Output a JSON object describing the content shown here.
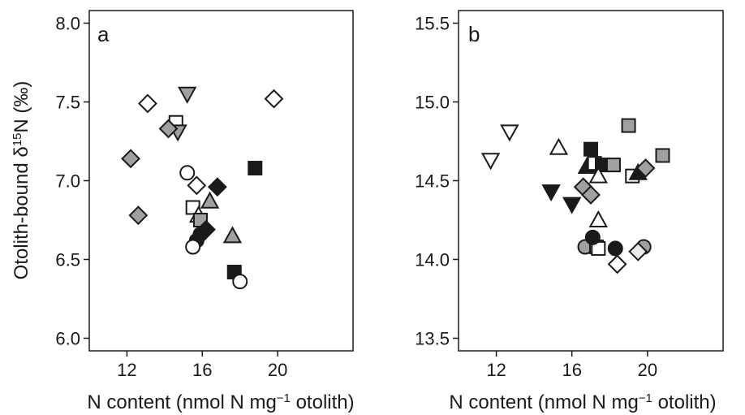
{
  "colors": {
    "black": "#1a1a1a",
    "gray": "#a0a0a0",
    "lightgray": "#e9e9e9",
    "white": "#ffffff"
  },
  "chart_data": [
    {
      "type": "scatter",
      "panel_label": "a",
      "ylabel_main": "Otolith-bound δ",
      "ylabel_sup": "15",
      "ylabel_tail": "N  (‰)",
      "xlabel_main": "N content (nmol N mg",
      "xlabel_sup": "−1",
      "xlabel_tail": " otolith)",
      "xlim": [
        10,
        24
      ],
      "ylim": [
        5.92,
        8.08
      ],
      "xticks": [
        12,
        16,
        20
      ],
      "yticks": [
        6.0,
        6.5,
        7.0,
        7.5,
        8.0
      ],
      "ytick_labels": [
        "6.0",
        "6.5",
        "7.0",
        "7.5",
        "8.0"
      ],
      "grid": false,
      "points": [
        {
          "x": 13.1,
          "y": 7.49,
          "shape": "diamond",
          "fill": "white"
        },
        {
          "x": 19.8,
          "y": 7.52,
          "shape": "diamond",
          "fill": "white"
        },
        {
          "x": 15.2,
          "y": 7.55,
          "shape": "triangle-down",
          "fill": "gray"
        },
        {
          "x": 14.6,
          "y": 7.37,
          "shape": "square",
          "fill": "white"
        },
        {
          "x": 14.7,
          "y": 7.31,
          "shape": "triangle-down",
          "fill": "gray"
        },
        {
          "x": 14.2,
          "y": 7.33,
          "shape": "diamond",
          "fill": "gray"
        },
        {
          "x": 12.2,
          "y": 7.14,
          "shape": "diamond",
          "fill": "gray"
        },
        {
          "x": 12.6,
          "y": 6.78,
          "shape": "diamond",
          "fill": "gray"
        },
        {
          "x": 15.2,
          "y": 7.05,
          "shape": "circle",
          "fill": "white"
        },
        {
          "x": 15.7,
          "y": 6.97,
          "shape": "diamond",
          "fill": "white"
        },
        {
          "x": 16.8,
          "y": 6.96,
          "shape": "diamond",
          "fill": "black"
        },
        {
          "x": 18.8,
          "y": 7.08,
          "shape": "square",
          "fill": "black"
        },
        {
          "x": 15.5,
          "y": 6.83,
          "shape": "square",
          "fill": "white"
        },
        {
          "x": 16.4,
          "y": 6.87,
          "shape": "triangle-up",
          "fill": "gray"
        },
        {
          "x": 15.8,
          "y": 6.78,
          "shape": "triangle-up",
          "fill": "white"
        },
        {
          "x": 15.9,
          "y": 6.75,
          "shape": "square",
          "fill": "gray"
        },
        {
          "x": 16.2,
          "y": 6.69,
          "shape": "diamond",
          "fill": "black"
        },
        {
          "x": 17.6,
          "y": 6.65,
          "shape": "triangle-up",
          "fill": "gray"
        },
        {
          "x": 15.9,
          "y": 6.66,
          "shape": "circle",
          "fill": "black"
        },
        {
          "x": 15.7,
          "y": 6.62,
          "shape": "circle",
          "fill": "black"
        },
        {
          "x": 15.5,
          "y": 6.58,
          "shape": "circle",
          "fill": "white"
        },
        {
          "x": 17.7,
          "y": 6.42,
          "shape": "square",
          "fill": "black"
        },
        {
          "x": 18.0,
          "y": 6.36,
          "shape": "circle",
          "fill": "white"
        }
      ]
    },
    {
      "type": "scatter",
      "panel_label": "b",
      "xlabel_main": "N content (nmol N mg",
      "xlabel_sup": "−1",
      "xlabel_tail": " otolith)",
      "xlim": [
        10,
        24
      ],
      "ylim": [
        13.42,
        15.58
      ],
      "xticks": [
        12,
        16,
        20
      ],
      "yticks": [
        13.5,
        14.0,
        14.5,
        15.0,
        15.5
      ],
      "ytick_labels": [
        "13.5",
        "14.0",
        "14.5",
        "15.0",
        "15.5"
      ],
      "grid": false,
      "points": [
        {
          "x": 11.7,
          "y": 14.63,
          "shape": "triangle-down",
          "fill": "white"
        },
        {
          "x": 12.7,
          "y": 14.81,
          "shape": "triangle-down",
          "fill": "white"
        },
        {
          "x": 15.3,
          "y": 14.71,
          "shape": "triangle-up",
          "fill": "white"
        },
        {
          "x": 17.0,
          "y": 14.7,
          "shape": "square",
          "fill": "black"
        },
        {
          "x": 19.0,
          "y": 14.85,
          "shape": "square",
          "fill": "gray"
        },
        {
          "x": 20.8,
          "y": 14.66,
          "shape": "square",
          "fill": "gray"
        },
        {
          "x": 16.8,
          "y": 14.59,
          "shape": "triangle-up",
          "fill": "black"
        },
        {
          "x": 17.2,
          "y": 14.61,
          "shape": "square",
          "fill": "white"
        },
        {
          "x": 17.6,
          "y": 14.6,
          "shape": "square",
          "fill": "black"
        },
        {
          "x": 18.2,
          "y": 14.6,
          "shape": "square",
          "fill": "gray"
        },
        {
          "x": 17.4,
          "y": 14.53,
          "shape": "triangle-up",
          "fill": "white"
        },
        {
          "x": 19.2,
          "y": 14.53,
          "shape": "square",
          "fill": "white"
        },
        {
          "x": 19.5,
          "y": 14.55,
          "shape": "triangle-up",
          "fill": "black"
        },
        {
          "x": 19.9,
          "y": 14.58,
          "shape": "diamond",
          "fill": "gray"
        },
        {
          "x": 14.9,
          "y": 14.43,
          "shape": "triangle-down",
          "fill": "black"
        },
        {
          "x": 16.6,
          "y": 14.46,
          "shape": "diamond",
          "fill": "gray"
        },
        {
          "x": 17.0,
          "y": 14.41,
          "shape": "diamond",
          "fill": "gray"
        },
        {
          "x": 16.0,
          "y": 14.35,
          "shape": "triangle-down",
          "fill": "black"
        },
        {
          "x": 17.4,
          "y": 14.25,
          "shape": "triangle-up",
          "fill": "white"
        },
        {
          "x": 16.7,
          "y": 14.08,
          "shape": "circle",
          "fill": "gray"
        },
        {
          "x": 17.3,
          "y": 14.08,
          "shape": "square",
          "fill": "gray"
        },
        {
          "x": 17.4,
          "y": 14.07,
          "shape": "square",
          "fill": "white"
        },
        {
          "x": 17.1,
          "y": 14.14,
          "shape": "circle",
          "fill": "black"
        },
        {
          "x": 18.3,
          "y": 14.07,
          "shape": "circle",
          "fill": "black"
        },
        {
          "x": 19.8,
          "y": 14.08,
          "shape": "circle",
          "fill": "gray"
        },
        {
          "x": 19.5,
          "y": 14.05,
          "shape": "diamond",
          "fill": "lightgray"
        },
        {
          "x": 18.4,
          "y": 13.97,
          "shape": "diamond",
          "fill": "white"
        }
      ]
    }
  ]
}
